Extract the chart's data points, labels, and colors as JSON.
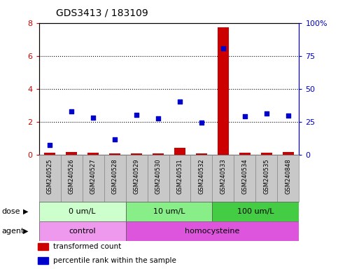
{
  "title": "GDS3413 / 183109",
  "samples": [
    "GSM240525",
    "GSM240526",
    "GSM240527",
    "GSM240528",
    "GSM240529",
    "GSM240530",
    "GSM240531",
    "GSM240532",
    "GSM240533",
    "GSM240534",
    "GSM240535",
    "GSM240848"
  ],
  "transformed_count": [
    0.15,
    0.18,
    0.12,
    0.1,
    0.1,
    0.1,
    0.42,
    0.08,
    7.75,
    0.12,
    0.15,
    0.18
  ],
  "percentile_rank": [
    7.75,
    33.2,
    28.5,
    11.9,
    30.6,
    27.7,
    40.3,
    24.7,
    81.0,
    29.4,
    31.3,
    29.8
  ],
  "ylim_left": [
    0,
    8
  ],
  "ylim_right": [
    0,
    100
  ],
  "yticks_left": [
    0,
    2,
    4,
    6,
    8
  ],
  "yticks_right": [
    0,
    25,
    50,
    75,
    100
  ],
  "ytick_labels_right": [
    "0",
    "25",
    "50",
    "75",
    "100%"
  ],
  "dose_groups": [
    {
      "label": "0 um/L",
      "start": 0,
      "end": 4,
      "color": "#ccffcc"
    },
    {
      "label": "10 um/L",
      "start": 4,
      "end": 8,
      "color": "#88ee88"
    },
    {
      "label": "100 um/L",
      "start": 8,
      "end": 12,
      "color": "#44cc44"
    }
  ],
  "agent_groups": [
    {
      "label": "control",
      "start": 0,
      "end": 4,
      "color": "#ee99ee"
    },
    {
      "label": "homocysteine",
      "start": 4,
      "end": 12,
      "color": "#dd55dd"
    }
  ],
  "bar_color": "#cc0000",
  "dot_color": "#0000cc",
  "title_color": "#000000",
  "left_axis_color": "#cc0000",
  "right_axis_color": "#0000cc",
  "background_color": "#ffffff",
  "sample_bg_color": "#c8c8c8",
  "legend": [
    {
      "label": "transformed count",
      "color": "#cc0000"
    },
    {
      "label": "percentile rank within the sample",
      "color": "#0000cc"
    }
  ]
}
